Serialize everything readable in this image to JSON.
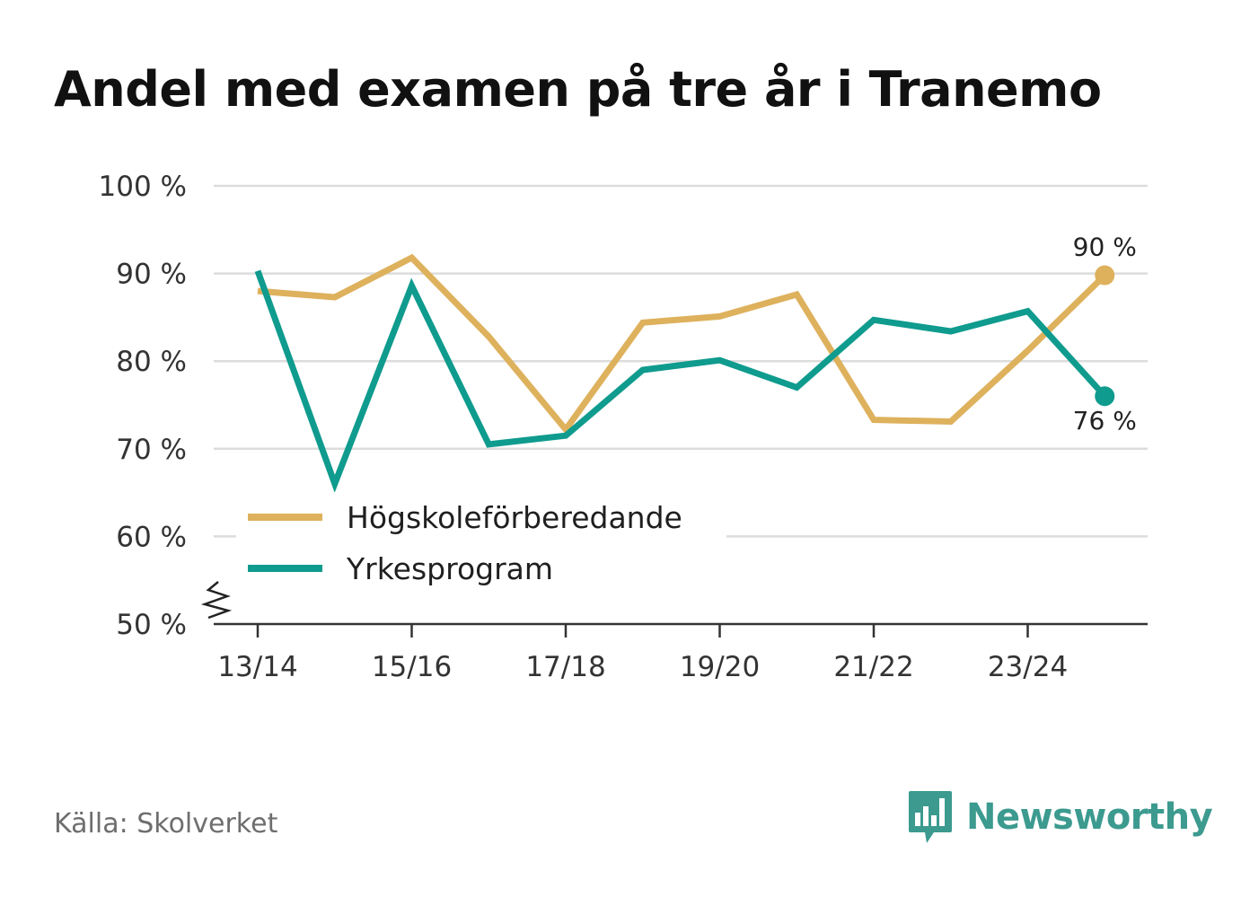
{
  "title": "Andel med examen på tre år i Tranemo",
  "source": "Källa: Skolverket",
  "brand": {
    "name": "Newsworthy",
    "icon": "newsworthy-logo-icon",
    "color": "#3c9a8f"
  },
  "chart_data": {
    "type": "line",
    "title": "Andel med examen på tre år i Tranemo",
    "xlabel": "",
    "ylabel": "",
    "x": [
      "13/14",
      "14/15",
      "15/16",
      "16/17",
      "17/18",
      "18/19",
      "19/20",
      "20/21",
      "21/22",
      "22/23",
      "23/24",
      "24/25"
    ],
    "x_tick_labels": [
      "13/14",
      "15/16",
      "17/18",
      "19/20",
      "21/22",
      "23/24"
    ],
    "ylim": [
      50,
      100
    ],
    "y_ticks": [
      50,
      60,
      70,
      80,
      90,
      100
    ],
    "y_tick_labels": [
      "50 %",
      "60 %",
      "70 %",
      "80 %",
      "90 %",
      "100 %"
    ],
    "grid": true,
    "axis_break": true,
    "legend_position": "bottom-left",
    "series": [
      {
        "name": "Högskoleförberedande",
        "color": "#deb15d",
        "values": [
          88.0,
          87.3,
          91.8,
          82.8,
          72.2,
          84.4,
          85.1,
          87.6,
          73.3,
          73.1,
          81.2,
          89.8
        ],
        "end_label": "90 %"
      },
      {
        "name": "Yrkesprogram",
        "color": "#0f9b8e",
        "values": [
          90.3,
          66.0,
          88.6,
          70.5,
          71.5,
          79.0,
          80.1,
          77.0,
          84.7,
          83.4,
          85.7,
          76.0
        ],
        "end_label": "76 %"
      }
    ]
  }
}
